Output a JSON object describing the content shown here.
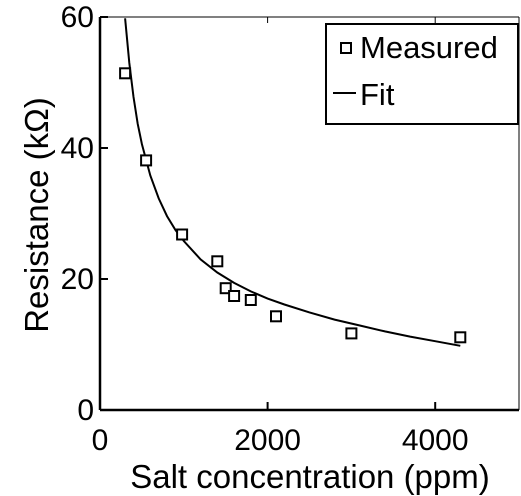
{
  "chart_data": {
    "type": "scatter",
    "title": "",
    "xlabel": "Salt concentration (ppm)",
    "ylabel": "Resistance (kΩ)",
    "xlim": [
      0,
      5000
    ],
    "ylim": [
      0,
      60
    ],
    "xticks": [
      0,
      2000,
      4000
    ],
    "xtick_labels": [
      "0",
      "2000",
      "4000"
    ],
    "yticks": [
      0,
      20,
      40,
      60
    ],
    "ytick_labels": [
      "0",
      "20",
      "40",
      "60"
    ],
    "grid": false,
    "legend_position": "top-right",
    "colors": {
      "marker_stroke": "#000000",
      "marker_fill": "#ffffff",
      "line": "#000000",
      "axes": "#000000"
    },
    "series": [
      {
        "name": "Measured",
        "kind": "markers",
        "marker": "square",
        "x": [
          300,
          550,
          980,
          1400,
          1500,
          1600,
          1800,
          2100,
          3000,
          4300
        ],
        "y": [
          51.4,
          38.1,
          26.8,
          22.7,
          18.6,
          17.4,
          16.8,
          14.3,
          11.7,
          11.1
        ]
      },
      {
        "name": "Fit",
        "kind": "line",
        "x": [
          300,
          350,
          400,
          450,
          500,
          600,
          700,
          800,
          900,
          1000,
          1200,
          1400,
          1600,
          1800,
          2000,
          2200,
          2500,
          2800,
          3100,
          3400,
          3700,
          4000,
          4300
        ],
        "y": [
          59.8,
          53.0,
          47.8,
          43.7,
          40.6,
          35.8,
          32.3,
          29.6,
          27.5,
          25.8,
          23.0,
          21.0,
          19.4,
          18.1,
          17.0,
          16.1,
          14.9,
          13.8,
          12.9,
          12.0,
          11.2,
          10.5,
          9.8
        ]
      }
    ]
  }
}
